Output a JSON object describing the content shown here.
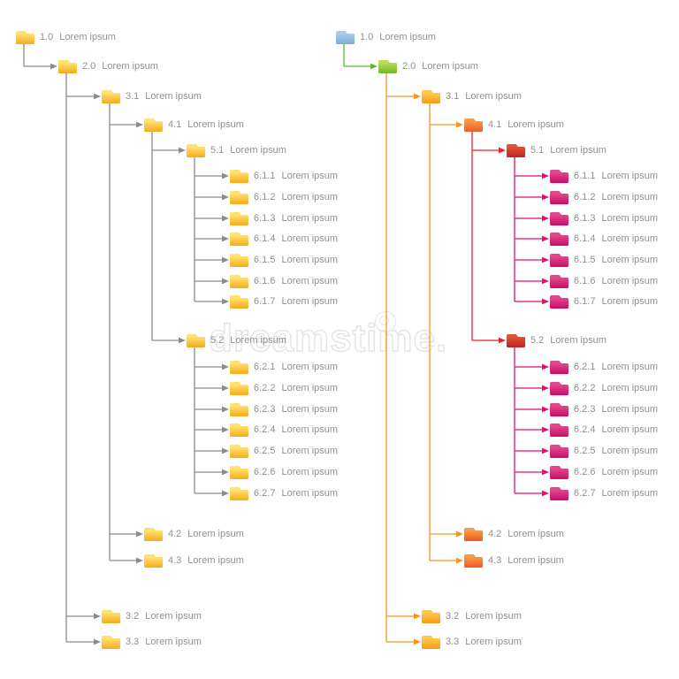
{
  "watermark": {
    "text": "dreamstime."
  },
  "palette": {
    "text_gray": "#8e9093",
    "line_gray": "#8b8b8b",
    "line_green": "#54b931",
    "line_orange": "#f7941d",
    "line_red": "#e8232a",
    "line_magenta": "#e40e6f",
    "folder_gold": "#f7aa1d",
    "folder_amber": "#f79a18",
    "folder_blue": "#79add9",
    "folder_green": "#70b72a",
    "folder_orange": "#ee5a24",
    "folder_red": "#c02325",
    "folder_magenta": "#c60d67",
    "watermark_outline": "#e4e4e6"
  },
  "left_tree": {
    "nodes": [
      {
        "id": "1.0",
        "label": "Lorem ipsum",
        "color": "gold"
      },
      {
        "id": "2.0",
        "label": "Lorem ipsum",
        "color": "gold"
      },
      {
        "id": "3.1",
        "label": "Lorem ipsum",
        "color": "gold"
      },
      {
        "id": "4.1",
        "label": "Lorem ipsum",
        "color": "gold"
      },
      {
        "id": "5.1",
        "label": "Lorem ipsum",
        "color": "gold"
      },
      {
        "id": "6.1.1",
        "label": "Lorem ipsum",
        "color": "gold"
      },
      {
        "id": "6.1.2",
        "label": "Lorem ipsum",
        "color": "gold"
      },
      {
        "id": "6.1.3",
        "label": "Lorem ipsum",
        "color": "gold"
      },
      {
        "id": "6.1.4",
        "label": "Lorem ipsum",
        "color": "gold"
      },
      {
        "id": "6.1.5",
        "label": "Lorem ipsum",
        "color": "gold"
      },
      {
        "id": "6.1.6",
        "label": "Lorem ipsum",
        "color": "gold"
      },
      {
        "id": "6.1.7",
        "label": "Lorem ipsum",
        "color": "gold"
      },
      {
        "id": "5.2",
        "label": "Lorem ipsum",
        "color": "gold"
      },
      {
        "id": "6.2.1",
        "label": "Lorem ipsum",
        "color": "gold"
      },
      {
        "id": "6.2.2",
        "label": "Lorem ipsum",
        "color": "gold"
      },
      {
        "id": "6.2.3",
        "label": "Lorem ipsum",
        "color": "gold"
      },
      {
        "id": "6.2.4",
        "label": "Lorem ipsum",
        "color": "gold"
      },
      {
        "id": "6.2.5",
        "label": "Lorem ipsum",
        "color": "gold"
      },
      {
        "id": "6.2.6",
        "label": "Lorem ipsum",
        "color": "gold"
      },
      {
        "id": "6.2.7",
        "label": "Lorem ipsum",
        "color": "gold"
      },
      {
        "id": "4.2",
        "label": "Lorem ipsum",
        "color": "gold"
      },
      {
        "id": "4.3",
        "label": "Lorem ipsum",
        "color": "gold"
      },
      {
        "id": "3.2",
        "label": "Lorem ipsum",
        "color": "gold"
      },
      {
        "id": "3.3",
        "label": "Lorem ipsum",
        "color": "gold"
      }
    ],
    "line_colors": {
      "1.0": "line_gray",
      "2.0": "line_gray",
      "3.1": "line_gray",
      "4.1": "line_gray",
      "5.1": "line_gray",
      "5.2": "line_gray"
    }
  },
  "right_tree": {
    "nodes": [
      {
        "id": "1.0",
        "label": "Lorem ipsum",
        "color": "blue"
      },
      {
        "id": "2.0",
        "label": "Lorem ipsum",
        "color": "green"
      },
      {
        "id": "3.1",
        "label": "Lorem ipsum",
        "color": "amber"
      },
      {
        "id": "4.1",
        "label": "Lorem ipsum",
        "color": "orange"
      },
      {
        "id": "5.1",
        "label": "Lorem ipsum",
        "color": "red"
      },
      {
        "id": "6.1.1",
        "label": "Lorem ipsum",
        "color": "magenta"
      },
      {
        "id": "6.1.2",
        "label": "Lorem ipsum",
        "color": "magenta"
      },
      {
        "id": "6.1.3",
        "label": "Lorem ipsum",
        "color": "magenta"
      },
      {
        "id": "6.1.4",
        "label": "Lorem ipsum",
        "color": "magenta"
      },
      {
        "id": "6.1.5",
        "label": "Lorem ipsum",
        "color": "magenta"
      },
      {
        "id": "6.1.6",
        "label": "Lorem ipsum",
        "color": "magenta"
      },
      {
        "id": "6.1.7",
        "label": "Lorem ipsum",
        "color": "magenta"
      },
      {
        "id": "5.2",
        "label": "Lorem ipsum",
        "color": "red"
      },
      {
        "id": "6.2.1",
        "label": "Lorem ipsum",
        "color": "magenta"
      },
      {
        "id": "6.2.2",
        "label": "Lorem ipsum",
        "color": "magenta"
      },
      {
        "id": "6.2.3",
        "label": "Lorem ipsum",
        "color": "magenta"
      },
      {
        "id": "6.2.4",
        "label": "Lorem ipsum",
        "color": "magenta"
      },
      {
        "id": "6.2.5",
        "label": "Lorem ipsum",
        "color": "magenta"
      },
      {
        "id": "6.2.6",
        "label": "Lorem ipsum",
        "color": "magenta"
      },
      {
        "id": "6.2.7",
        "label": "Lorem ipsum",
        "color": "magenta"
      },
      {
        "id": "4.2",
        "label": "Lorem ipsum",
        "color": "orange"
      },
      {
        "id": "4.3",
        "label": "Lorem ipsum",
        "color": "orange"
      },
      {
        "id": "3.2",
        "label": "Lorem ipsum",
        "color": "amber"
      },
      {
        "id": "3.3",
        "label": "Lorem ipsum",
        "color": "amber"
      }
    ],
    "line_colors": {
      "1.0": "line_green",
      "2.0": "line_orange",
      "3.1": "line_orange",
      "4.1": "line_red",
      "5.1": "line_magenta",
      "5.2": "line_magenta"
    }
  }
}
